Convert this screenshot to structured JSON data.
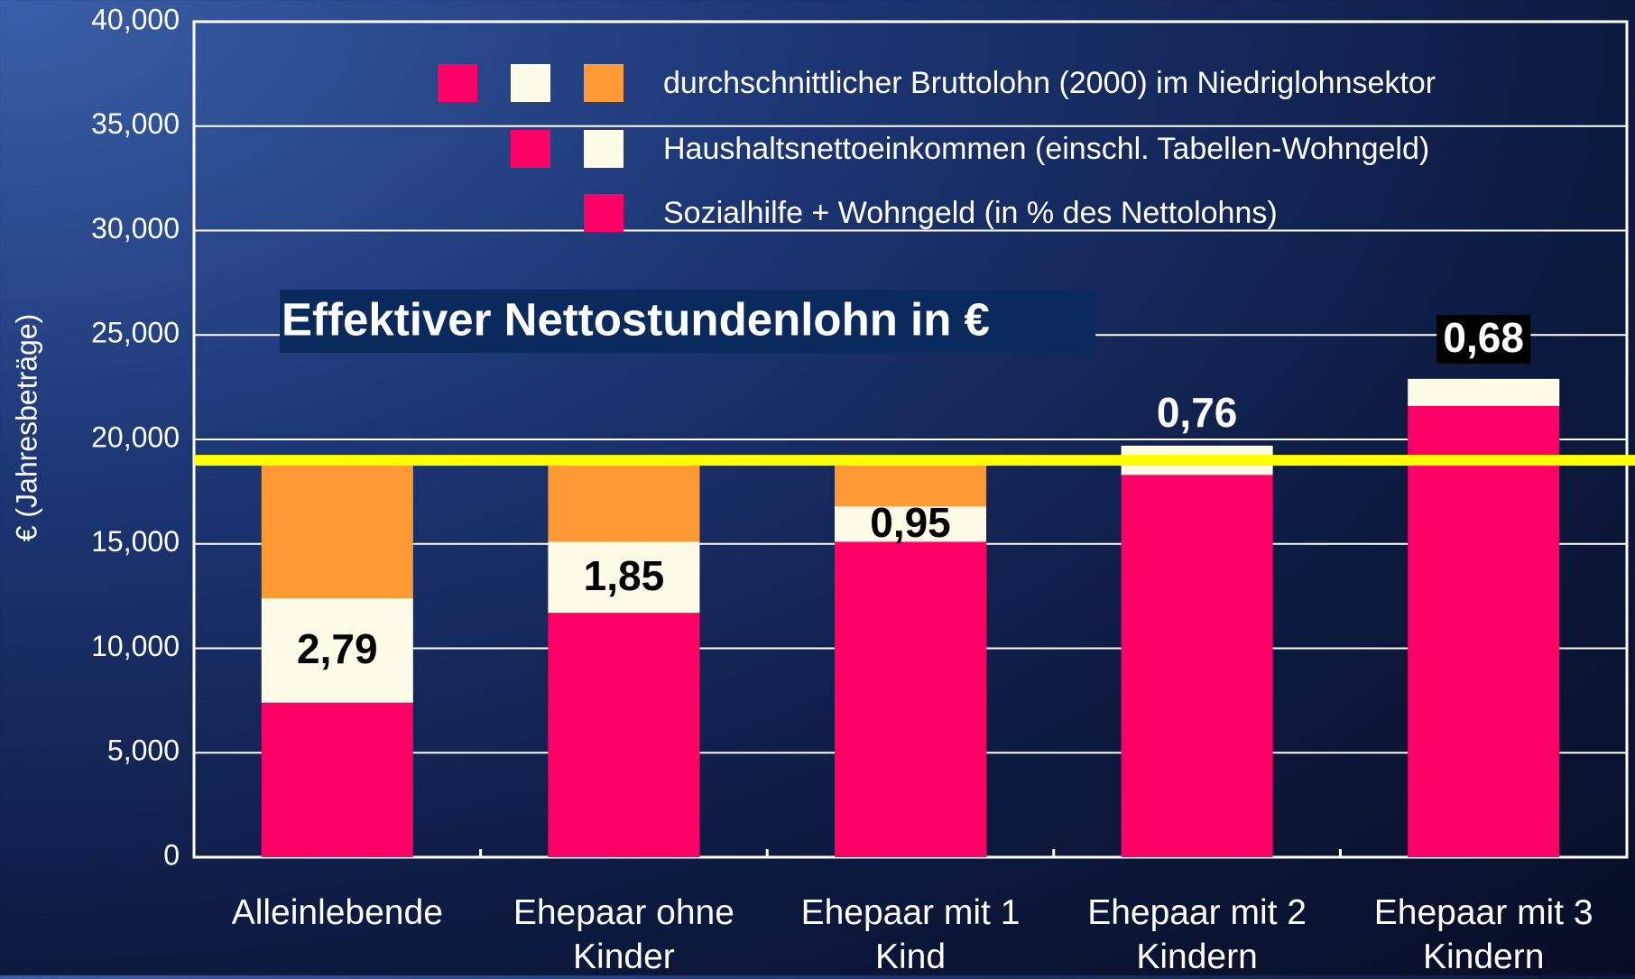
{
  "chart_data": {
    "type": "stacked_bar",
    "y_label": "€ (Jahresbeträge)",
    "categories": [
      "Alleinlebende",
      "Ehepaar ohne Kinder",
      "Ehepaar mit 1 Kind",
      "Ehepaar mit 2 Kindern",
      "Ehepaar mit 3 Kindern"
    ],
    "series": [
      {
        "name": "Sozialhilfe + Wohngeld (in % des Nettolohns)",
        "color": "#ff0066",
        "values": [
          7400,
          11700,
          15100,
          18300,
          21600
        ]
      },
      {
        "name": "Haushaltsnettoeinkommen (einschl. Tabellen-Wohngeld)",
        "color": "#fffbe6",
        "values": [
          5000,
          3400,
          1700,
          1400,
          1300
        ]
      },
      {
        "name": "durchschnittlicher Bruttolohn (2000) im Niedriglohnsektor",
        "color": "#ff9933",
        "values": [
          6600,
          3900,
          2200,
          null,
          null
        ]
      }
    ],
    "reference_line": {
      "value": 19000,
      "color": "#ffff00"
    },
    "annotation_title": "Effektiver Nettostundenlohn in €",
    "annotation_labels": [
      "2,79",
      "1,85",
      "0,95",
      "0,76",
      "0,68"
    ],
    "ylim": [
      0,
      40000
    ],
    "yticks": [
      0,
      {
        "value": 5000,
        "label": "5,000"
      },
      {
        "value": 10000,
        "label": "10,000"
      },
      {
        "value": 15000,
        "label": "15,000"
      },
      {
        "value": 20000,
        "label": "20,000"
      },
      {
        "value": 25000,
        "label": "25,000"
      },
      {
        "value": 30000,
        "label": "30,000"
      },
      {
        "value": 35000,
        "label": "35,000"
      },
      {
        "value": 40000,
        "label": "40,000"
      }
    ],
    "grid": true
  }
}
